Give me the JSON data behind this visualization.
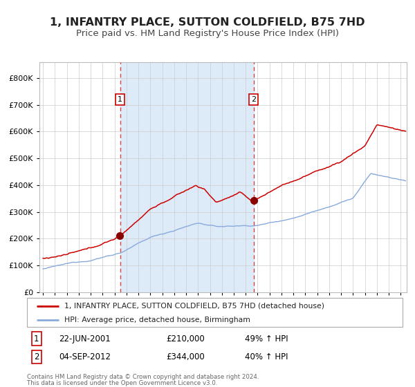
{
  "title": "1, INFANTRY PLACE, SUTTON COLDFIELD, B75 7HD",
  "subtitle": "Price paid vs. HM Land Registry's House Price Index (HPI)",
  "title_fontsize": 11.5,
  "subtitle_fontsize": 9.5,
  "background_color": "#ffffff",
  "plot_bg_color": "#ffffff",
  "shaded_region_color": "#ddeaf7",
  "legend_line1": "1, INFANTRY PLACE, SUTTON COLDFIELD, B75 7HD (detached house)",
  "legend_line2": "HPI: Average price, detached house, Birmingham",
  "ann1_label": "1",
  "ann1_date": "22-JUN-2001",
  "ann1_price": "£210,000",
  "ann1_pct": "49% ↑ HPI",
  "ann1_x": 2001.47,
  "ann1_y": 210000,
  "ann2_label": "2",
  "ann2_date": "04-SEP-2012",
  "ann2_price": "£344,000",
  "ann2_pct": "40% ↑ HPI",
  "ann2_x": 2012.67,
  "ann2_y": 344000,
  "yticks": [
    0,
    100000,
    200000,
    300000,
    400000,
    500000,
    600000,
    700000,
    800000
  ],
  "ylim": [
    0,
    860000
  ],
  "xlim_start": 1994.7,
  "xlim_end": 2025.5,
  "footer_line1": "Contains HM Land Registry data © Crown copyright and database right 2024.",
  "footer_line2": "This data is licensed under the Open Government Licence v3.0.",
  "red_color": "#cc0000",
  "blue_color": "#88aadd",
  "dot_color": "#880000",
  "vline1_color": "#dd4444",
  "vline2_color": "#cc4444",
  "box_edge_color": "#cc0000"
}
